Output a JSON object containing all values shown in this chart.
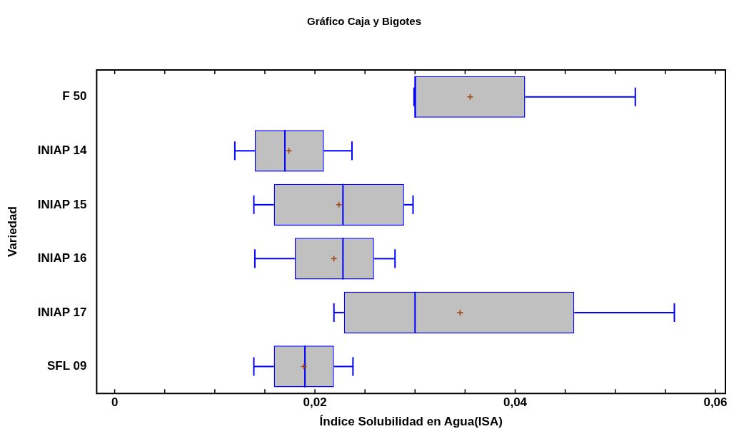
{
  "chart_data": {
    "type": "box",
    "title": "Gráfico Caja y Bigotes",
    "xlabel": "Índice Solubilidad en Agua(ISA)",
    "ylabel": "Variedad",
    "orientation": "horizontal",
    "categories": [
      "F 50",
      "INIAP 14",
      "INIAP 15",
      "INIAP 16",
      "INIAP 17",
      "SFL 09"
    ],
    "series": [
      {
        "color": "#0000ff",
        "boxes": [
          {
            "low": 0.0299,
            "q1": 0.03,
            "median": 0.03,
            "q3": 0.041,
            "high": 0.052,
            "mean": 0.0355
          },
          {
            "low": 0.012,
            "q1": 0.014,
            "median": 0.017,
            "q3": 0.0209,
            "high": 0.0237,
            "mean": 0.0174
          },
          {
            "low": 0.0139,
            "q1": 0.0159,
            "median": 0.0228,
            "q3": 0.0289,
            "high": 0.0298,
            "mean": 0.0224
          },
          {
            "low": 0.014,
            "q1": 0.018,
            "median": 0.0228,
            "q3": 0.0259,
            "high": 0.028,
            "mean": 0.0219
          },
          {
            "low": 0.0219,
            "q1": 0.0229,
            "median": 0.03,
            "q3": 0.0459,
            "high": 0.0559,
            "mean": 0.0345
          },
          {
            "low": 0.0139,
            "q1": 0.0159,
            "median": 0.019,
            "q3": 0.0219,
            "high": 0.0238,
            "mean": 0.0189
          }
        ]
      }
    ],
    "xlim": [
      -0.0018,
      0.061
    ],
    "xticks": [
      0,
      {
        "value": 0.005,
        "label": null
      },
      {
        "value": 0.01,
        "label": null
      },
      {
        "value": 0.015,
        "label": null
      },
      {
        "value": 0.02,
        "label": "0,02"
      },
      {
        "value": 0.025,
        "label": null
      },
      {
        "value": 0.03,
        "label": null
      },
      {
        "value": 0.035,
        "label": null
      },
      {
        "value": 0.04,
        "label": "0,04"
      },
      {
        "value": 0.045,
        "label": null
      },
      {
        "value": 0.05,
        "label": null
      },
      {
        "value": 0.055,
        "label": null
      },
      {
        "value": 0.06,
        "label": "0,06"
      }
    ],
    "grid": false,
    "legend": false
  }
}
